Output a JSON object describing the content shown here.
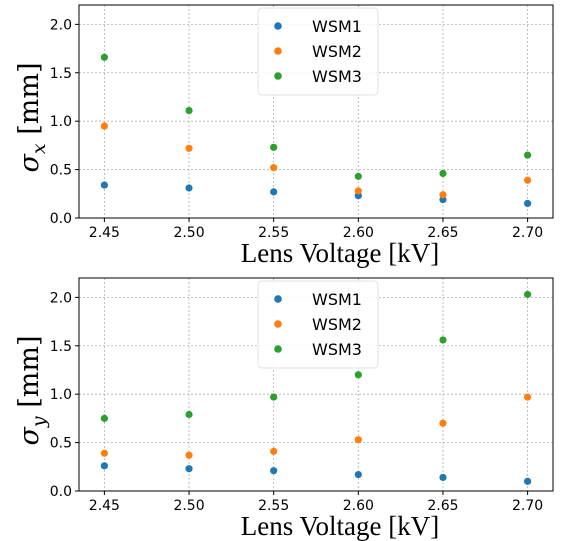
{
  "chart_data": [
    {
      "type": "scatter",
      "x": [
        2.45,
        2.5,
        2.55,
        2.6,
        2.65,
        2.7
      ],
      "series": [
        {
          "name": "WSM1",
          "color": "#1f77b4",
          "values": [
            0.34,
            0.31,
            0.27,
            0.23,
            0.19,
            0.15
          ]
        },
        {
          "name": "WSM2",
          "color": "#ff7f0e",
          "values": [
            0.95,
            0.72,
            0.52,
            0.28,
            0.24,
            0.39
          ]
        },
        {
          "name": "WSM3",
          "color": "#2ca02c",
          "values": [
            1.66,
            1.11,
            0.73,
            0.43,
            0.46,
            0.65
          ]
        }
      ],
      "xlabel": "Lens Voltage [kV]",
      "ylabel_var": "σ",
      "ylabel_sub": "x",
      "ylabel_unit": "[mm]",
      "xlim": [
        2.435,
        2.715
      ],
      "ylim": [
        0,
        2.2
      ],
      "xticks": [
        "2.45",
        "2.50",
        "2.55",
        "2.60",
        "2.65",
        "2.70"
      ],
      "yticks": [
        "0.0",
        "0.5",
        "1.0",
        "1.5",
        "2.0"
      ],
      "grid": true,
      "legend_position": "top-center"
    },
    {
      "type": "scatter",
      "x": [
        2.45,
        2.5,
        2.55,
        2.6,
        2.65,
        2.7
      ],
      "series": [
        {
          "name": "WSM1",
          "color": "#1f77b4",
          "values": [
            0.26,
            0.23,
            0.21,
            0.17,
            0.14,
            0.1
          ]
        },
        {
          "name": "WSM2",
          "color": "#ff7f0e",
          "values": [
            0.39,
            0.37,
            0.41,
            0.53,
            0.7,
            0.97
          ]
        },
        {
          "name": "WSM3",
          "color": "#2ca02c",
          "values": [
            0.75,
            0.79,
            0.97,
            1.2,
            1.56,
            2.03
          ]
        }
      ],
      "xlabel": "Lens Voltage [kV]",
      "ylabel_var": "σ",
      "ylabel_sub": "y",
      "ylabel_unit": "[mm]",
      "xlim": [
        2.435,
        2.715
      ],
      "ylim": [
        0,
        2.2
      ],
      "xticks": [
        "2.45",
        "2.50",
        "2.55",
        "2.60",
        "2.65",
        "2.70"
      ],
      "yticks": [
        "0.0",
        "0.5",
        "1.0",
        "1.5",
        "2.0"
      ],
      "grid": true,
      "legend_position": "top-center"
    }
  ]
}
